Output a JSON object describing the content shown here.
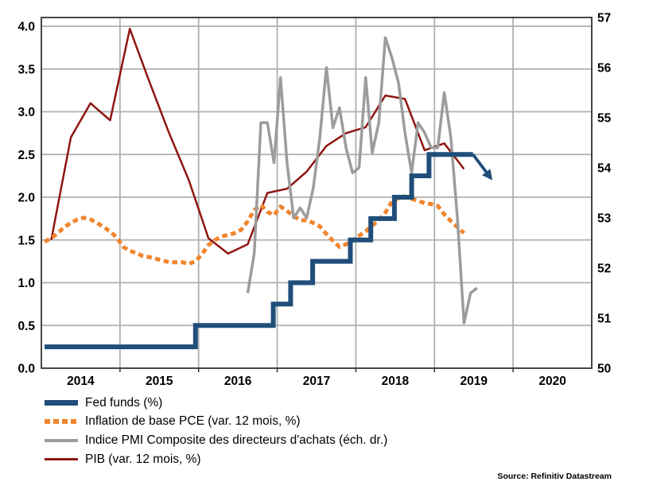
{
  "source": "Source: Refinitiv Datastream",
  "chart_data": {
    "type": "line",
    "title": "",
    "grid": true,
    "legend_position": "bottom-left",
    "x_axis": {
      "range": [
        2014.0,
        2021.0
      ],
      "tick_labels": [
        "2014",
        "2015",
        "2016",
        "2017",
        "2018",
        "2019",
        "2020"
      ],
      "gridline_years": [
        2015,
        2016,
        2017,
        2018,
        2019,
        2020
      ]
    },
    "y_left": {
      "range": [
        0,
        4
      ],
      "tick_step": 0.5,
      "tick_labels": [
        "0.0",
        "0.5",
        "1.0",
        "1.5",
        "2.0",
        "2.5",
        "3.0",
        "3.5",
        "4.0"
      ]
    },
    "y_right": {
      "range": [
        50,
        57
      ],
      "tick_step": 1,
      "tick_labels": [
        "50",
        "51",
        "52",
        "53",
        "54",
        "55",
        "56",
        "57"
      ]
    },
    "colors": {
      "fed_funds": "#1F4E79",
      "core_pce": "#F0852E",
      "pmi": "#9C9C9C",
      "pib": "#8F1511",
      "gridline": "#AFAFAF",
      "border": "#333333"
    },
    "series": [
      {
        "name": "Fed funds (%)",
        "type": "step",
        "axis": "left",
        "color": "#1F4E79",
        "style": "solid",
        "width": 6,
        "steps": [
          [
            2014.04,
            0.25
          ],
          [
            2015.96,
            0.5
          ],
          [
            2016.95,
            0.75
          ],
          [
            2017.17,
            1.0
          ],
          [
            2017.45,
            1.25
          ],
          [
            2017.93,
            1.5
          ],
          [
            2018.19,
            1.75
          ],
          [
            2018.49,
            2.0
          ],
          [
            2018.71,
            2.25
          ],
          [
            2018.93,
            2.5
          ]
        ],
        "end_x": 2019.49,
        "arrow_to": [
          2019.67,
          2.28
        ]
      },
      {
        "name": "Inflation de base PCE (var. 12 mois, %)",
        "type": "line",
        "axis": "left",
        "color": "#F0852E",
        "style": "dashed",
        "width": 5,
        "freq": "monthly",
        "start_year": 2014,
        "start_month": 1,
        "values": [
          1.48,
          1.52,
          1.58,
          1.65,
          1.7,
          1.74,
          1.76,
          1.74,
          1.7,
          1.65,
          1.6,
          1.53,
          1.42,
          1.37,
          1.35,
          1.31,
          1.3,
          1.28,
          1.26,
          1.24,
          1.24,
          1.24,
          1.22,
          1.25,
          1.33,
          1.44,
          1.5,
          1.54,
          1.56,
          1.58,
          1.62,
          1.72,
          1.85,
          1.91,
          1.83,
          1.79,
          1.89,
          1.84,
          1.78,
          1.73,
          1.73,
          1.7,
          1.66,
          1.57,
          1.49,
          1.42,
          1.45,
          1.49,
          1.55,
          1.6,
          1.67,
          1.73,
          1.82,
          1.95,
          1.99,
          2.01,
          1.98,
          1.96,
          1.93,
          1.92,
          1.9,
          1.8,
          1.72,
          1.65,
          1.58
        ]
      },
      {
        "name": "Indice PMI Composite des directeurs d'achats (éch. dr.)",
        "type": "line",
        "axis": "right",
        "color": "#9C9C9C",
        "style": "solid",
        "width": 3.5,
        "freq": "monthly",
        "start_year": 2016,
        "start_month": 8,
        "values": [
          51.5,
          52.3,
          54.9,
          54.9,
          54.1,
          55.8,
          54.1,
          53.0,
          53.2,
          53.0,
          53.6,
          54.6,
          56.0,
          54.8,
          55.2,
          54.4,
          53.9,
          54.0,
          55.8,
          54.3,
          54.9,
          56.6,
          56.2,
          55.7,
          54.7,
          53.9,
          54.9,
          54.7,
          54.4,
          54.4,
          55.5,
          54.6,
          53.0,
          50.9,
          51.5,
          51.6
        ]
      },
      {
        "name": "PIB (var. 12 mois, %)",
        "type": "line",
        "axis": "left",
        "color": "#8F1511",
        "style": "solid",
        "width": 2.5,
        "freq": "quarterly",
        "start_year": 2014,
        "values": [
          1.5,
          2.7,
          3.1,
          2.9,
          3.97,
          3.35,
          2.75,
          2.2,
          1.52,
          1.34,
          1.45,
          2.05,
          2.1,
          2.3,
          2.6,
          2.75,
          2.82,
          3.19,
          3.15,
          2.55,
          2.63,
          2.33
        ]
      }
    ]
  }
}
